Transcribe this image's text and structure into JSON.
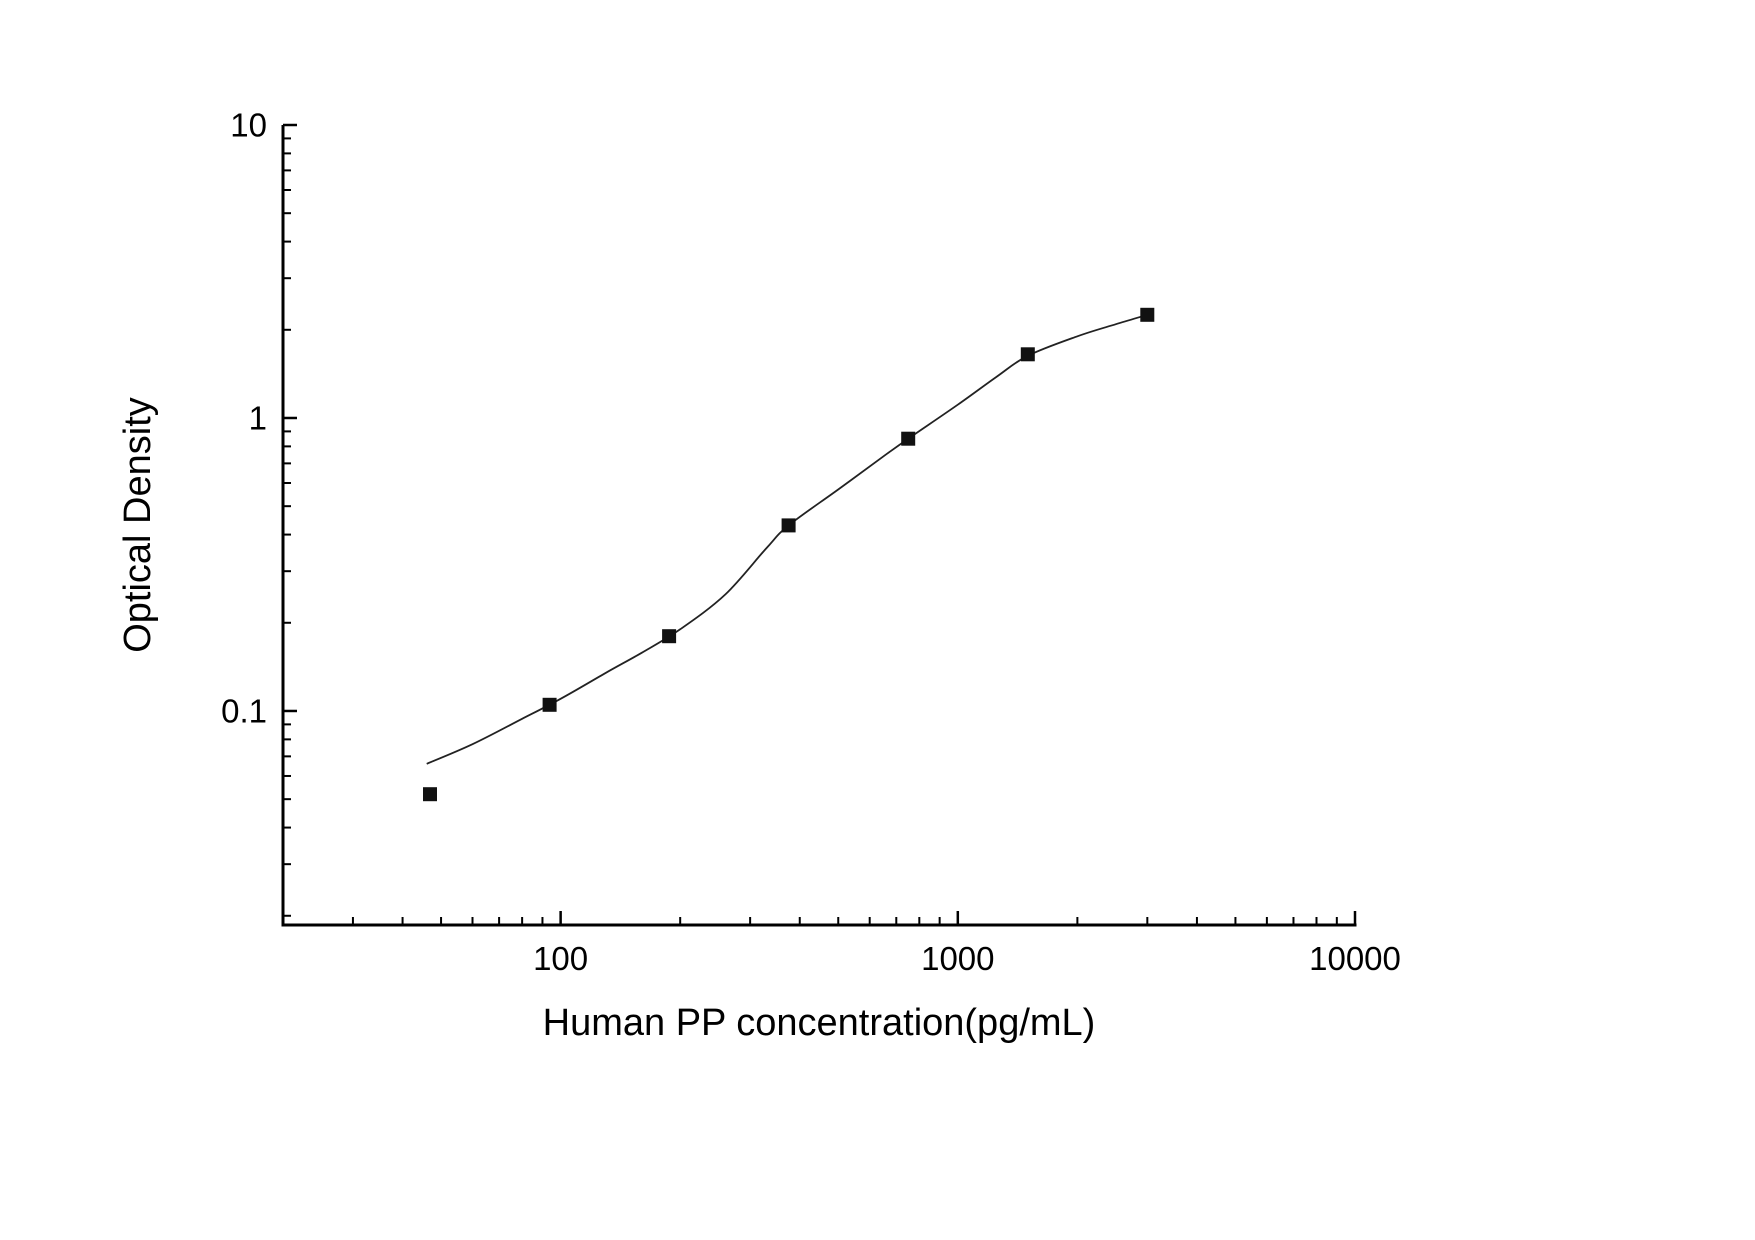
{
  "chart_data": {
    "type": "scatter",
    "title": "",
    "xlabel": "Human PP concentration(pg/mL)",
    "ylabel": "Optical Density",
    "x_scale": "log",
    "y_scale": "log",
    "xlim": [
      20,
      10000
    ],
    "ylim": [
      0.0186,
      10
    ],
    "x_ticks": [
      100,
      1000,
      10000
    ],
    "x_tick_labels": [
      "100",
      "1000",
      "10000"
    ],
    "y_ticks": [
      0.1,
      1,
      10
    ],
    "y_tick_labels": [
      "0.1",
      "1",
      "10"
    ],
    "grid": false,
    "legend": "none",
    "axis_color": "#000000",
    "marker_color": "#111111",
    "curve_color": "#222222",
    "series": [
      {
        "name": "standard-points",
        "marker": "square",
        "x": [
          46.9,
          93.8,
          187.5,
          375,
          750,
          1500,
          3000
        ],
        "y": [
          0.052,
          0.105,
          0.18,
          0.43,
          0.85,
          1.65,
          2.25
        ]
      }
    ],
    "fit_curve": {
      "name": "4pl-fit-line",
      "x": [
        46,
        60,
        80,
        100,
        130,
        160,
        200,
        260,
        330,
        375,
        500,
        650,
        750,
        1000,
        1250,
        1500,
        2000,
        2500,
        3000
      ],
      "y": [
        0.066,
        0.077,
        0.094,
        0.11,
        0.135,
        0.158,
        0.19,
        0.25,
        0.36,
        0.43,
        0.57,
        0.74,
        0.85,
        1.11,
        1.38,
        1.63,
        1.9,
        2.09,
        2.25
      ]
    }
  },
  "layout_text": {
    "xlabel": "Human PP concentration(pg/mL)",
    "ylabel": "Optical Density"
  }
}
